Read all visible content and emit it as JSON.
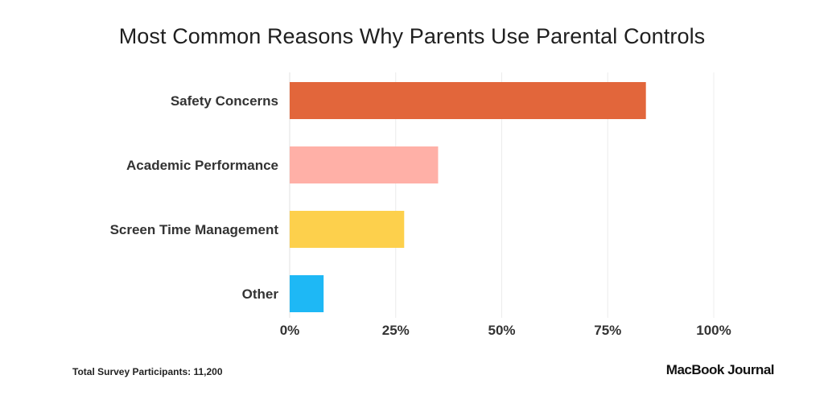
{
  "title": "Most Common Reasons Why Parents Use Parental Controls",
  "footnote": "Total Survey Participants: 11,200",
  "brand": "MacBook Journal",
  "chart_data": {
    "type": "bar",
    "orientation": "horizontal",
    "title": "Most Common Reasons Why Parents Use Parental Controls",
    "categories": [
      "Safety Concerns",
      "Academic Performance",
      "Screen Time Management",
      "Other"
    ],
    "values": [
      84,
      35,
      27,
      8
    ],
    "colors": [
      "#e2663b",
      "#ffb0a7",
      "#fdd04c",
      "#1eb8f5"
    ],
    "xlim": [
      0,
      100
    ],
    "xticks": [
      0,
      25,
      50,
      75,
      100
    ],
    "xtick_labels": [
      "0%",
      "25%",
      "50%",
      "75%",
      "100%"
    ],
    "grid": true,
    "legend": "none"
  }
}
